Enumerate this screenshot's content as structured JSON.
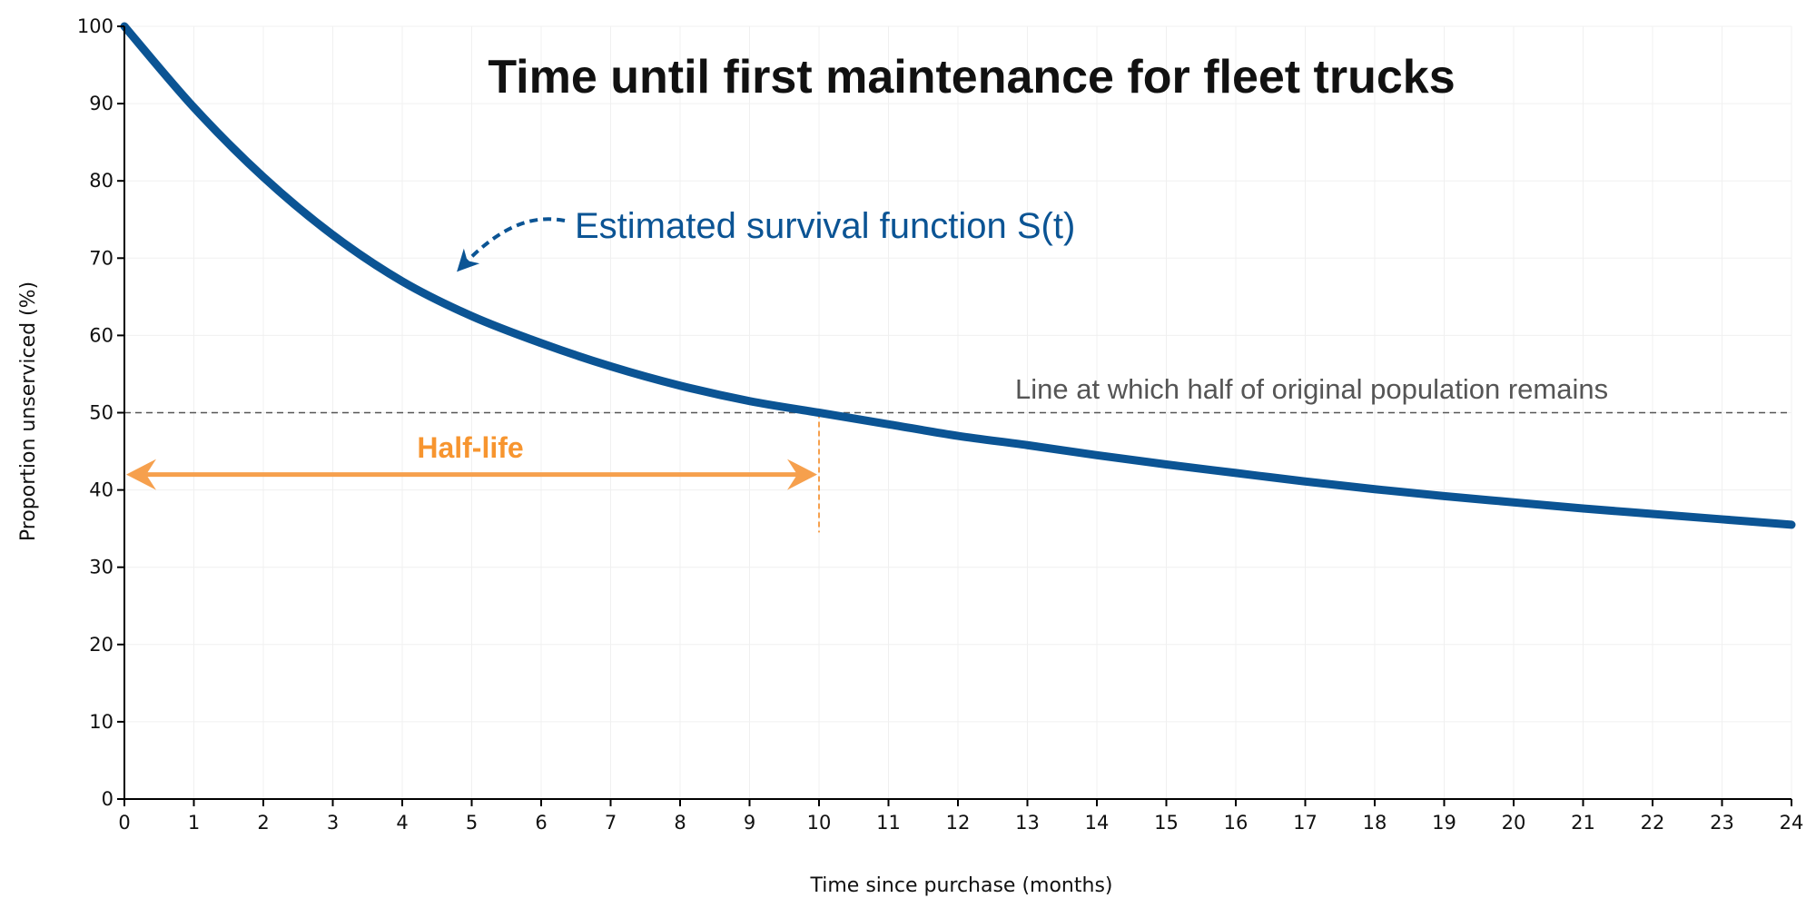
{
  "chart_data": {
    "type": "line",
    "title": "Time until first maintenance for fleet trucks",
    "xlabel": "Time since purchase (months)",
    "ylabel": "Proportion unserviced (%)",
    "xlim": [
      0,
      24
    ],
    "ylim": [
      0,
      100
    ],
    "x_ticks": [
      0,
      1,
      2,
      3,
      4,
      5,
      6,
      7,
      8,
      9,
      10,
      11,
      12,
      13,
      14,
      15,
      16,
      17,
      18,
      19,
      20,
      21,
      22,
      23,
      24
    ],
    "y_ticks": [
      0,
      10,
      20,
      30,
      40,
      50,
      60,
      70,
      80,
      90,
      100
    ],
    "grid": true,
    "series": [
      {
        "x": [
          0,
          1,
          2,
          3,
          4,
          5,
          6,
          7,
          8,
          9,
          10,
          11,
          12,
          13,
          14,
          15,
          16,
          17,
          18,
          19,
          20,
          21,
          22,
          23,
          24
        ],
        "values": [
          100,
          89.5,
          80.5,
          73,
          67,
          62.5,
          59,
          56,
          53.5,
          51.5,
          50,
          48.5,
          47,
          45.8,
          44.5,
          43.3,
          42.2,
          41.1,
          40.1,
          39.2,
          38.4,
          37.6,
          36.9,
          36.2,
          35.5
        ],
        "color": "#0B5494"
      }
    ],
    "reference_line": {
      "y": 50,
      "label": "Line at which half of original population remains",
      "color": "#555555"
    },
    "annotations": [
      {
        "text": "Estimated survival function S(t)",
        "color": "#0B5494",
        "target_x": 4.75,
        "target_y": 67
      },
      {
        "text": "Half-life",
        "color": "#F6A04D",
        "x_start": 0,
        "x_end": 10,
        "y": 42,
        "drop_from_y": 50,
        "drop_to_y": 34.5
      }
    ]
  }
}
